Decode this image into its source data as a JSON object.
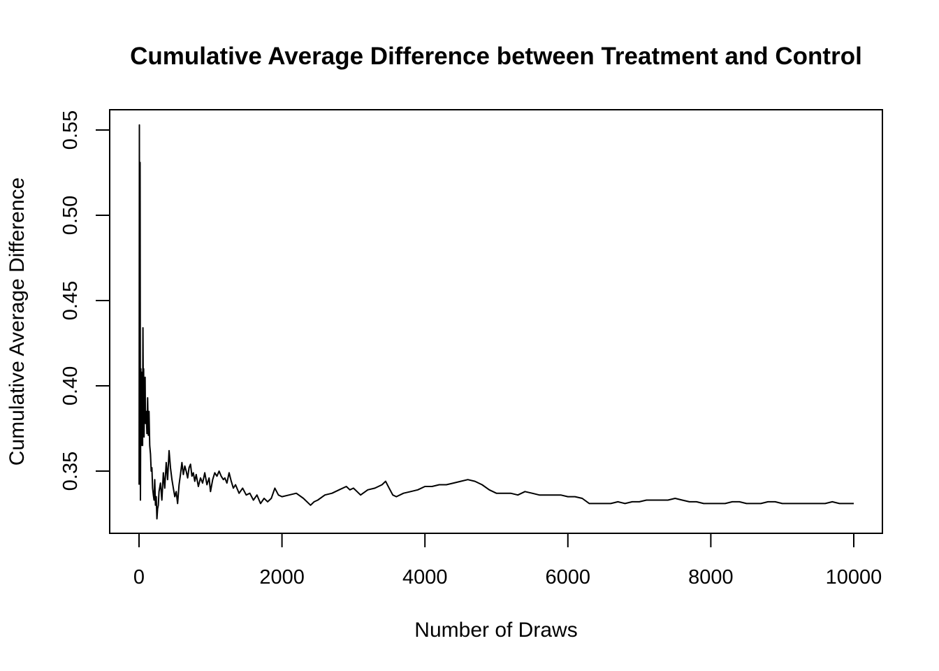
{
  "chart_data": {
    "type": "line",
    "title": "Cumulative Average Difference between Treatment and Control",
    "xlabel": "Number of Draws",
    "ylabel": "Cumulative Average Difference",
    "xlim": [
      0,
      10000
    ],
    "ylim": [
      0.33,
      0.55
    ],
    "xticks": [
      0,
      2000,
      4000,
      6000,
      8000,
      10000
    ],
    "xtick_labels": [
      "0",
      "2000",
      "4000",
      "6000",
      "8000",
      "10000"
    ],
    "yticks": [
      0.35,
      0.4,
      0.45,
      0.5,
      0.55
    ],
    "ytick_labels": [
      "0.35",
      "0.40",
      "0.45",
      "0.50",
      "0.55"
    ],
    "grid": false,
    "series": [
      {
        "color": "#000000",
        "x": [
          1,
          5,
          10,
          15,
          20,
          25,
          30,
          35,
          40,
          45,
          50,
          55,
          60,
          65,
          70,
          75,
          80,
          85,
          90,
          100,
          110,
          120,
          130,
          140,
          150,
          160,
          170,
          180,
          190,
          200,
          210,
          220,
          230,
          240,
          250,
          260,
          270,
          280,
          300,
          320,
          340,
          360,
          380,
          400,
          420,
          440,
          460,
          480,
          500,
          520,
          540,
          560,
          580,
          600,
          620,
          640,
          660,
          680,
          700,
          720,
          740,
          760,
          780,
          800,
          830,
          860,
          890,
          920,
          950,
          980,
          1000,
          1030,
          1060,
          1090,
          1120,
          1150,
          1180,
          1200,
          1230,
          1260,
          1290,
          1320,
          1350,
          1400,
          1450,
          1500,
          1550,
          1600,
          1650,
          1700,
          1750,
          1800,
          1850,
          1900,
          1950,
          2000,
          2100,
          2200,
          2300,
          2400,
          2450,
          2500,
          2600,
          2700,
          2800,
          2900,
          2950,
          3000,
          3100,
          3200,
          3300,
          3400,
          3450,
          3500,
          3550,
          3600,
          3700,
          3800,
          3900,
          4000,
          4100,
          4200,
          4300,
          4400,
          4500,
          4600,
          4700,
          4800,
          4900,
          5000,
          5100,
          5200,
          5300,
          5400,
          5500,
          5600,
          5700,
          5800,
          5900,
          6000,
          6100,
          6200,
          6300,
          6400,
          6500,
          6600,
          6700,
          6800,
          6900,
          7000,
          7100,
          7200,
          7300,
          7400,
          7500,
          7600,
          7700,
          7800,
          7900,
          8000,
          8100,
          8200,
          8300,
          8400,
          8500,
          8600,
          8700,
          8800,
          8900,
          9000,
          9100,
          9200,
          9300,
          9400,
          9500,
          9600,
          9700,
          9800,
          9900,
          10000
        ],
        "y": [
          0.342,
          0.553,
          0.348,
          0.531,
          0.333,
          0.41,
          0.365,
          0.408,
          0.372,
          0.402,
          0.365,
          0.434,
          0.395,
          0.41,
          0.37,
          0.4,
          0.38,
          0.405,
          0.378,
          0.385,
          0.372,
          0.393,
          0.371,
          0.385,
          0.365,
          0.36,
          0.35,
          0.352,
          0.34,
          0.336,
          0.333,
          0.345,
          0.33,
          0.335,
          0.322,
          0.328,
          0.33,
          0.338,
          0.343,
          0.333,
          0.349,
          0.34,
          0.355,
          0.345,
          0.362,
          0.352,
          0.345,
          0.34,
          0.335,
          0.338,
          0.331,
          0.342,
          0.348,
          0.355,
          0.348,
          0.353,
          0.35,
          0.346,
          0.352,
          0.354,
          0.347,
          0.349,
          0.344,
          0.348,
          0.341,
          0.346,
          0.343,
          0.349,
          0.342,
          0.346,
          0.338,
          0.345,
          0.349,
          0.347,
          0.35,
          0.347,
          0.345,
          0.346,
          0.343,
          0.349,
          0.344,
          0.34,
          0.342,
          0.337,
          0.34,
          0.336,
          0.337,
          0.333,
          0.336,
          0.331,
          0.334,
          0.332,
          0.334,
          0.34,
          0.336,
          0.335,
          0.336,
          0.337,
          0.334,
          0.33,
          0.332,
          0.333,
          0.336,
          0.337,
          0.339,
          0.341,
          0.339,
          0.34,
          0.336,
          0.339,
          0.34,
          0.342,
          0.344,
          0.34,
          0.336,
          0.335,
          0.337,
          0.338,
          0.339,
          0.341,
          0.341,
          0.342,
          0.342,
          0.343,
          0.344,
          0.345,
          0.344,
          0.342,
          0.339,
          0.337,
          0.337,
          0.337,
          0.336,
          0.338,
          0.337,
          0.336,
          0.336,
          0.336,
          0.336,
          0.335,
          0.335,
          0.334,
          0.331,
          0.331,
          0.331,
          0.331,
          0.332,
          0.331,
          0.332,
          0.332,
          0.333,
          0.333,
          0.333,
          0.333,
          0.334,
          0.333,
          0.332,
          0.332,
          0.331,
          0.331,
          0.331,
          0.331,
          0.332,
          0.332,
          0.331,
          0.331,
          0.331,
          0.332,
          0.332,
          0.331,
          0.331,
          0.331,
          0.331,
          0.331,
          0.331,
          0.331,
          0.332,
          0.331,
          0.331,
          0.331
        ]
      }
    ]
  }
}
